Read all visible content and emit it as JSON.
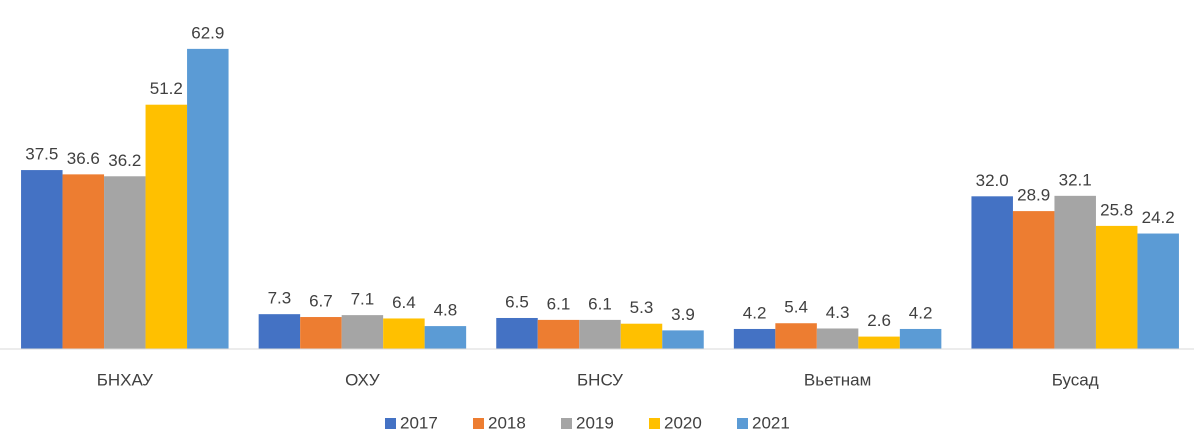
{
  "chart_data": {
    "type": "bar",
    "categories": [
      "БНХАУ",
      "ОХУ",
      "БНСУ",
      "Вьетнам",
      "Бусад"
    ],
    "series": [
      {
        "name": "2017",
        "color": "#4472c4",
        "values": [
          37.5,
          7.3,
          6.5,
          4.2,
          32.0
        ],
        "value_labels": [
          "37.5",
          "7.3",
          "6.5",
          "4.2",
          "32.0"
        ]
      },
      {
        "name": "2018",
        "color": "#ed7d31",
        "values": [
          36.6,
          6.7,
          6.1,
          5.4,
          28.9
        ],
        "value_labels": [
          "36.6",
          "6.7",
          "6.1",
          "5.4",
          "28.9"
        ]
      },
      {
        "name": "2019",
        "color": "#a5a5a5",
        "values": [
          36.2,
          7.1,
          6.1,
          4.3,
          32.1
        ],
        "value_labels": [
          "36.2",
          "7.1",
          "6.1",
          "4.3",
          "32.1"
        ]
      },
      {
        "name": "2020",
        "color": "#ffc000",
        "values": [
          51.2,
          6.4,
          5.3,
          2.6,
          25.8
        ],
        "value_labels": [
          "51.2",
          "6.4",
          "5.3",
          "2.6",
          "25.8"
        ]
      },
      {
        "name": "2021",
        "color": "#5b9bd5",
        "values": [
          62.9,
          4.8,
          3.9,
          4.2,
          24.2
        ],
        "value_labels": [
          "62.9",
          "4.8",
          "3.9",
          "4.2",
          "24.2"
        ]
      }
    ],
    "ylim": [
      0,
      70
    ],
    "legend": "bottom"
  }
}
